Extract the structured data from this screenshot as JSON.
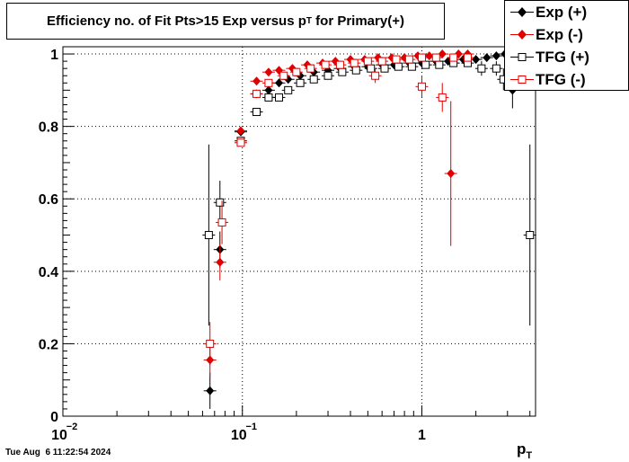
{
  "chart_data": {
    "type": "scatter",
    "title": "Efficiency no. of Fit Pts>15 Exp versus p_T for Primary(+)",
    "title_main": "Efficiency no. of Fit Pts>15 Exp versus p",
    "title_sub": "T",
    "title_tail": " for Primary(+)",
    "xlabel_main": "p",
    "xlabel_sub": "T",
    "xscale": "log",
    "xlim": [
      0.01,
      4.3
    ],
    "ylim": [
      0,
      1.02
    ],
    "grid": true,
    "legend_position": "top-right",
    "x_tick_labels": [
      {
        "value": 0.01,
        "base": "10",
        "exp": "−2"
      },
      {
        "value": 0.1,
        "base": "10",
        "exp": "−1"
      },
      {
        "value": 1,
        "base": "1",
        "exp": ""
      }
    ],
    "y_ticks": [
      0,
      0.2,
      0.4,
      0.6,
      0.8,
      1
    ],
    "y_tick_labels": [
      "0",
      "0.2",
      "0.4",
      "0.6",
      "0.8",
      "1"
    ],
    "series": [
      {
        "name": "Exp (+)",
        "marker": "diamond",
        "color": "#000000",
        "filled": true,
        "points": [
          [
            0.066,
            0.07,
            0.05
          ],
          [
            0.075,
            0.46,
            0.05
          ],
          [
            0.098,
            0.785,
            0.01
          ],
          [
            0.12,
            0.89,
            0.01
          ],
          [
            0.14,
            0.9,
            0.01
          ],
          [
            0.16,
            0.92,
            0.01
          ],
          [
            0.18,
            0.93,
            0.01
          ],
          [
            0.21,
            0.94,
            0.01
          ],
          [
            0.25,
            0.95,
            0.01
          ],
          [
            0.3,
            0.955,
            0.01
          ],
          [
            0.35,
            0.96,
            0.01
          ],
          [
            0.42,
            0.965,
            0.01
          ],
          [
            0.5,
            0.965,
            0.01
          ],
          [
            0.6,
            0.97,
            0.01
          ],
          [
            0.7,
            0.97,
            0.01
          ],
          [
            0.85,
            0.975,
            0.01
          ],
          [
            1.0,
            0.975,
            0.01
          ],
          [
            1.2,
            0.98,
            0.01
          ],
          [
            1.4,
            0.98,
            0.01
          ],
          [
            1.7,
            0.985,
            0.01
          ],
          [
            2.0,
            0.985,
            0.01
          ],
          [
            2.3,
            0.99,
            0.01
          ],
          [
            2.6,
            0.995,
            0.01
          ],
          [
            2.9,
            1.0,
            0.01
          ],
          [
            3.2,
            0.9,
            0.05
          ]
        ]
      },
      {
        "name": "Exp (-)",
        "marker": "diamond",
        "color": "#e00000",
        "filled": true,
        "points": [
          [
            0.066,
            0.155,
            0.05
          ],
          [
            0.075,
            0.425,
            0.05
          ],
          [
            0.098,
            0.788,
            0.01
          ],
          [
            0.12,
            0.925,
            0.01
          ],
          [
            0.14,
            0.95,
            0.01
          ],
          [
            0.16,
            0.955,
            0.01
          ],
          [
            0.19,
            0.96,
            0.01
          ],
          [
            0.23,
            0.97,
            0.01
          ],
          [
            0.28,
            0.975,
            0.01
          ],
          [
            0.33,
            0.98,
            0.01
          ],
          [
            0.4,
            0.985,
            0.01
          ],
          [
            0.48,
            0.985,
            0.01
          ],
          [
            0.57,
            0.99,
            0.01
          ],
          [
            0.68,
            0.99,
            0.01
          ],
          [
            0.8,
            0.99,
            0.01
          ],
          [
            0.95,
            0.995,
            0.01
          ],
          [
            1.1,
            0.995,
            0.01
          ],
          [
            1.3,
            1.0,
            0.01
          ],
          [
            1.45,
            0.67,
            0.2
          ],
          [
            1.6,
            1.0,
            0.01
          ],
          [
            1.8,
            1.0,
            0.01
          ]
        ]
      },
      {
        "name": "TFG (+)",
        "marker": "square",
        "color": "#000000",
        "filled": false,
        "points": [
          [
            0.065,
            0.5,
            0.25
          ],
          [
            0.075,
            0.59,
            0.06
          ],
          [
            0.098,
            0.76,
            0.01
          ],
          [
            0.12,
            0.84,
            0.01
          ],
          [
            0.14,
            0.88,
            0.01
          ],
          [
            0.16,
            0.88,
            0.01
          ],
          [
            0.18,
            0.9,
            0.01
          ],
          [
            0.21,
            0.92,
            0.01
          ],
          [
            0.25,
            0.93,
            0.01
          ],
          [
            0.3,
            0.94,
            0.01
          ],
          [
            0.36,
            0.95,
            0.01
          ],
          [
            0.43,
            0.955,
            0.01
          ],
          [
            0.52,
            0.96,
            0.01
          ],
          [
            0.62,
            0.96,
            0.01
          ],
          [
            0.74,
            0.965,
            0.01
          ],
          [
            0.88,
            0.965,
            0.01
          ],
          [
            1.05,
            0.97,
            0.01
          ],
          [
            1.25,
            0.97,
            0.01
          ],
          [
            1.5,
            0.975,
            0.01
          ],
          [
            1.8,
            0.975,
            0.01
          ],
          [
            2.15,
            0.96,
            0.02
          ],
          [
            2.6,
            0.96,
            0.02
          ],
          [
            2.85,
            0.93,
            0.03
          ],
          [
            4.0,
            0.5,
            0.25
          ]
        ]
      },
      {
        "name": "TFG (-)",
        "marker": "square",
        "color": "#e00000",
        "filled": false,
        "points": [
          [
            0.066,
            0.2,
            0.06
          ],
          [
            0.077,
            0.535,
            0.06
          ],
          [
            0.098,
            0.755,
            0.01
          ],
          [
            0.12,
            0.89,
            0.01
          ],
          [
            0.14,
            0.92,
            0.01
          ],
          [
            0.17,
            0.94,
            0.01
          ],
          [
            0.2,
            0.95,
            0.01
          ],
          [
            0.24,
            0.96,
            0.01
          ],
          [
            0.29,
            0.97,
            0.01
          ],
          [
            0.35,
            0.97,
            0.01
          ],
          [
            0.42,
            0.975,
            0.01
          ],
          [
            0.5,
            0.98,
            0.01
          ],
          [
            0.6,
            0.98,
            0.01
          ],
          [
            0.55,
            0.94,
            0.02
          ],
          [
            0.72,
            0.985,
            0.01
          ],
          [
            0.85,
            0.985,
            0.01
          ],
          [
            1.0,
            0.99,
            0.01
          ],
          [
            1.0,
            0.91,
            0.03
          ],
          [
            1.2,
            0.99,
            0.01
          ],
          [
            1.3,
            0.88,
            0.04
          ],
          [
            1.5,
            0.99,
            0.01
          ],
          [
            1.8,
            0.99,
            0.01
          ]
        ]
      }
    ]
  },
  "timestamp": "Tue Aug  6 11:22:54 2024"
}
